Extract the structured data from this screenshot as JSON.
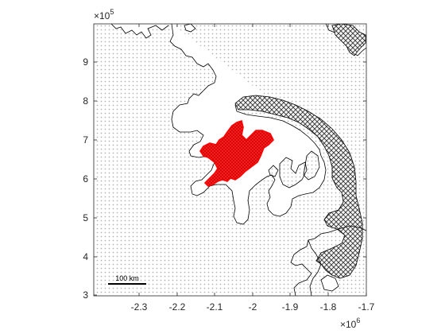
{
  "map": {
    "xaxis": {
      "ticks": [
        "-2.3",
        "-2.2",
        "-2.1",
        "-2",
        "-1.9",
        "-1.8",
        "-1.7"
      ],
      "multiplier_base": "×10",
      "multiplier_exp": "6"
    },
    "yaxis": {
      "ticks": [
        "3",
        "4",
        "5",
        "6",
        "7",
        "8",
        "9"
      ],
      "multiplier_base": "×10",
      "multiplier_exp": "5"
    },
    "scalebar": {
      "label": "100 km"
    },
    "colors": {
      "background_dots": "#b4b4b4",
      "outline": "#000000",
      "hatch": "#333333",
      "red_region": "#ff0000"
    }
  }
}
